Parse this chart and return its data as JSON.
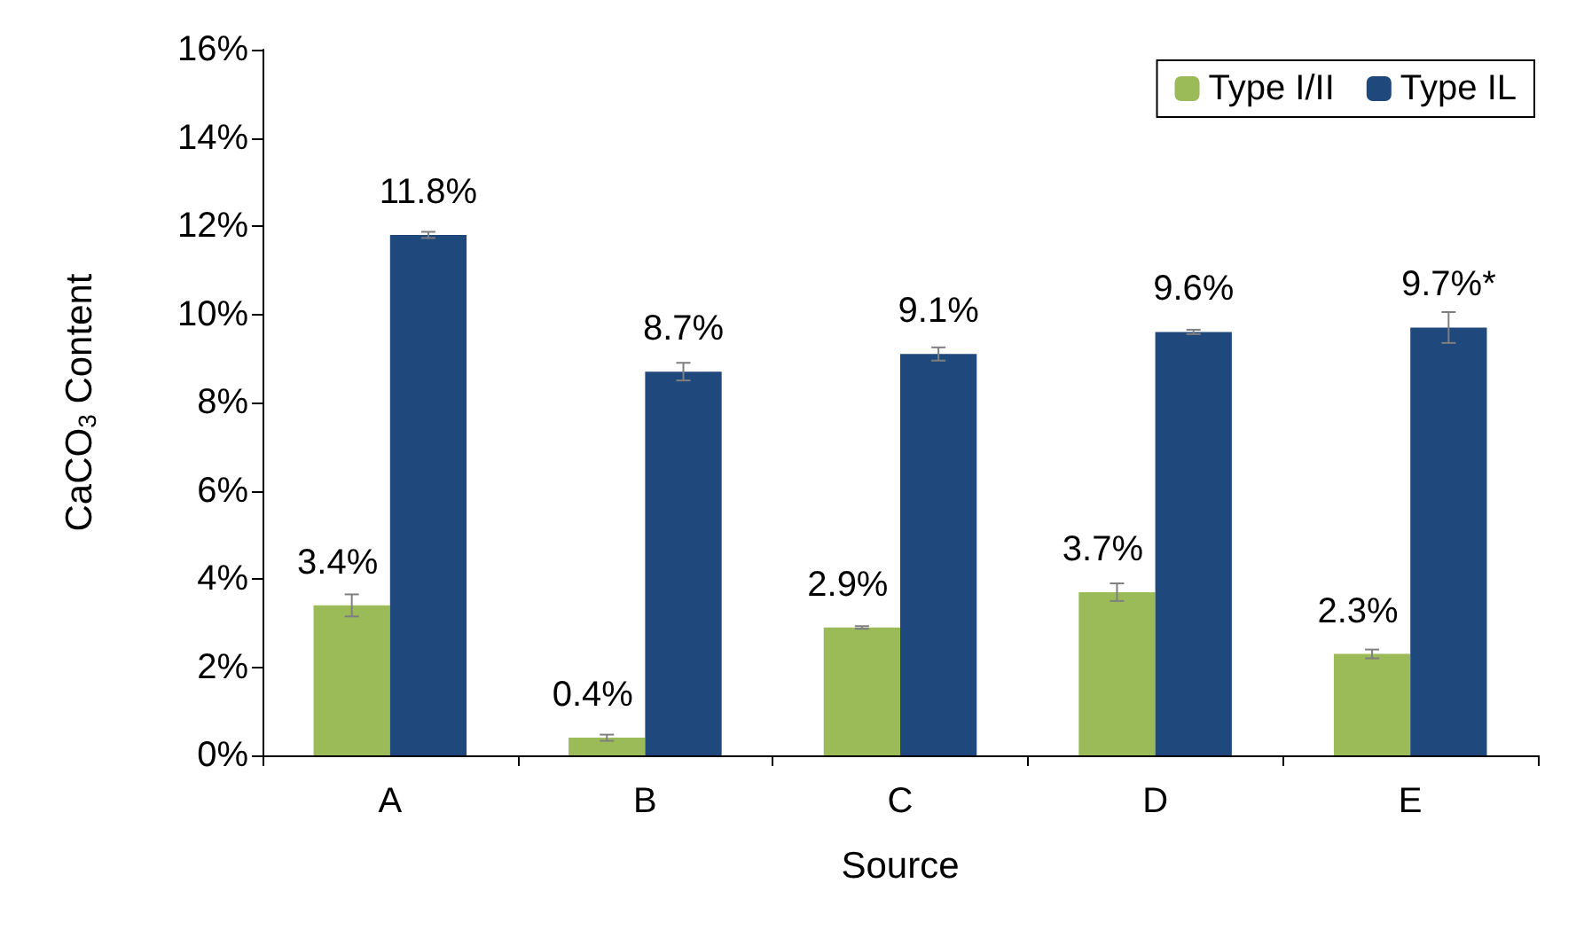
{
  "chart_data": {
    "type": "bar",
    "xlabel": "Source",
    "ylabel": "CaCO$_{3}$ Content",
    "categories": [
      "A",
      "B",
      "C",
      "D",
      "E"
    ],
    "series": [
      {
        "name": "Type I/II",
        "color": "#9bbb59",
        "values": [
          3.4,
          0.4,
          2.9,
          3.7,
          2.3
        ],
        "errors": [
          0.25,
          0.07,
          0.03,
          0.2,
          0.1
        ],
        "value_labels": [
          "3.4%",
          "0.4%",
          "2.9%",
          "3.7%",
          "2.3%"
        ]
      },
      {
        "name": "Type IL",
        "color": "#1f497d",
        "values": [
          11.8,
          8.7,
          9.1,
          9.6,
          9.7
        ],
        "errors": [
          0.07,
          0.2,
          0.15,
          0.05,
          0.35
        ],
        "value_labels": [
          "11.8%",
          "8.7%",
          "9.1%",
          "9.6%",
          "9.7%*"
        ]
      }
    ],
    "ylim": [
      0,
      16
    ],
    "yticks": [
      {
        "value": 0,
        "label": "0%"
      },
      {
        "value": 2,
        "label": "2%"
      },
      {
        "value": 4,
        "label": "4%"
      },
      {
        "value": 6,
        "label": "6%"
      },
      {
        "value": 8,
        "label": "8%"
      },
      {
        "value": 10,
        "label": "10%"
      },
      {
        "value": 12,
        "label": "12%"
      },
      {
        "value": 14,
        "label": "14%"
      },
      {
        "value": 16,
        "label": "16%"
      }
    ],
    "grid": false,
    "legend": "top right"
  }
}
